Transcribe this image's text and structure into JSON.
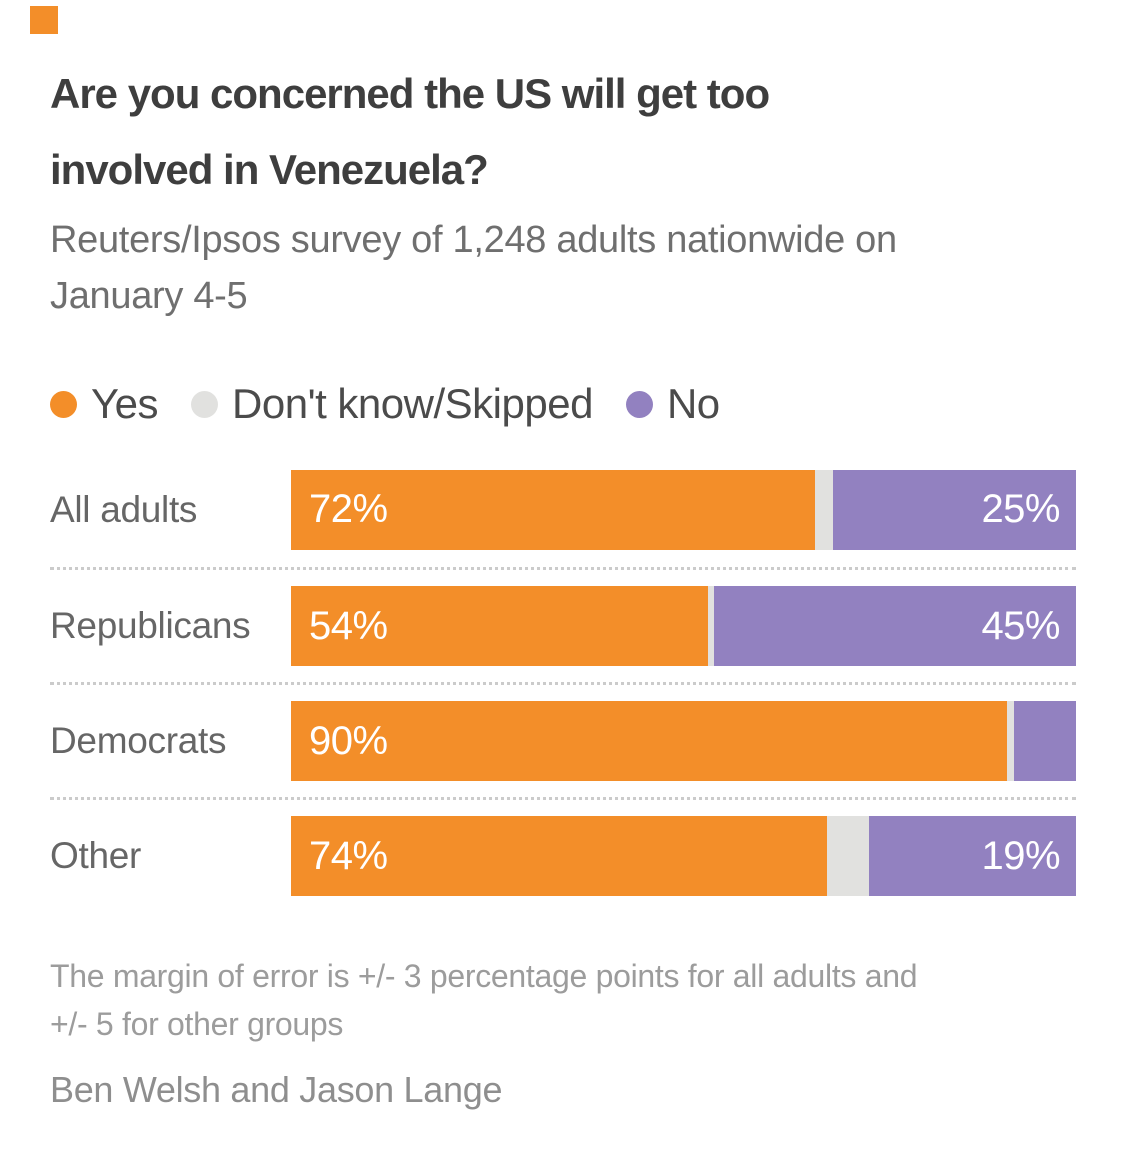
{
  "brand": {
    "logo_color": "#F38E29"
  },
  "header": {
    "title_lines": [
      "Are you concerned the US will get too",
      "involved in Venezuela?"
    ],
    "subtitle_lines": [
      "Reuters/Ipsos survey of 1,248 adults nationwide on",
      "January 4-5"
    ]
  },
  "legend": [
    {
      "label": "Yes",
      "color": "#F38E29"
    },
    {
      "label": "Don't know/Skipped",
      "color": "#E1E1DF"
    },
    {
      "label": "No",
      "color": "#9281C0"
    }
  ],
  "chart_data": {
    "type": "bar",
    "orientation": "horizontal",
    "stacked": true,
    "unit": "percent",
    "xlim": [
      0,
      100
    ],
    "grid": false,
    "legend_position": "top",
    "categories": [
      "All adults",
      "Republicans",
      "Democrats",
      "Other"
    ],
    "series": [
      {
        "name": "Yes",
        "color": "#F38E29",
        "values": [
          72,
          54,
          90,
          74
        ]
      },
      {
        "name": "Don't know/Skipped",
        "color": "#E1E1DF",
        "values": [
          3,
          1,
          1,
          7
        ]
      },
      {
        "name": "No",
        "color": "#9281C0",
        "values": [
          25,
          45,
          9,
          19
        ]
      }
    ],
    "bar_labels": {
      "yes": [
        "72%",
        "54%",
        "90%",
        "74%"
      ],
      "dk": [
        "",
        "",
        "",
        ""
      ],
      "no": [
        "25%",
        "45%",
        "",
        "19%"
      ]
    }
  },
  "footer": {
    "note_lines": [
      "The margin of error is +/- 3 percentage points for all adults and",
      "+/- 5 for other groups"
    ],
    "byline": "Ben Welsh and Jason Lange"
  }
}
